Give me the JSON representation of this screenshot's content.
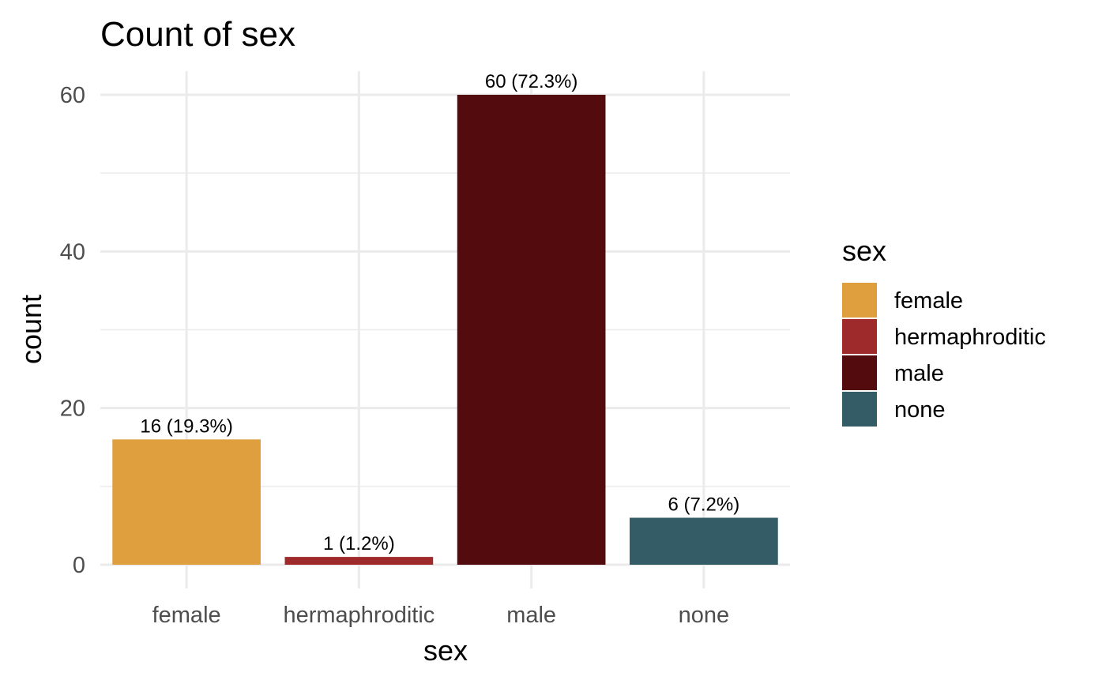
{
  "chart_data": {
    "type": "bar",
    "title": "Count of sex",
    "xlabel": "sex",
    "ylabel": "count",
    "categories": [
      "female",
      "hermaphroditic",
      "male",
      "none"
    ],
    "values": [
      16,
      1,
      60,
      6
    ],
    "data_labels": [
      "16 (19.3%)",
      "1 (1.2%)",
      "60 (72.3%)",
      "6 (7.2%)"
    ],
    "colors": [
      "#E09F3E",
      "#9E2A2B",
      "#540B0E",
      "#335C67"
    ],
    "ylim": [
      0,
      63
    ],
    "yticks": [
      0,
      20,
      40,
      60
    ],
    "ytick_labels": [
      "0",
      "20",
      "40",
      "60"
    ],
    "minor_yticks": [
      10,
      30,
      50
    ],
    "grid": true,
    "legend": {
      "title": "sex",
      "position": "right",
      "entries": [
        "female",
        "hermaphroditic",
        "male",
        "none"
      ]
    }
  }
}
